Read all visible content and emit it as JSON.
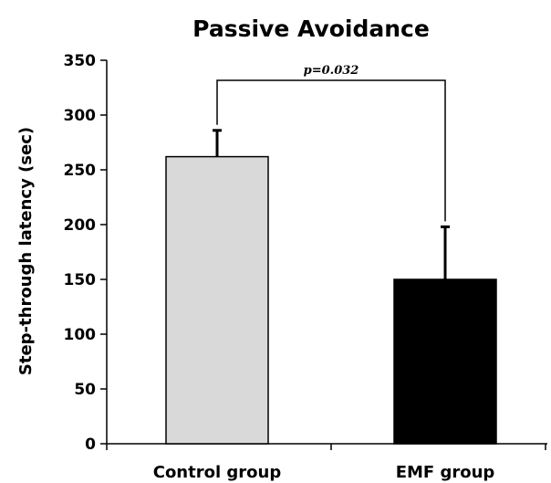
{
  "chart_data": {
    "type": "bar",
    "title": "Passive Avoidance",
    "xlabel": "",
    "ylabel": "Step-through latency (sec)",
    "categories": [
      "Control group",
      "EMF group"
    ],
    "values": [
      262,
      150
    ],
    "error": [
      24,
      48
    ],
    "colors": [
      "#d9d9d9",
      "#000000"
    ],
    "ylim": [
      0,
      350
    ],
    "yticks": [
      "0",
      "50",
      "100",
      "150",
      "200",
      "250",
      "300",
      "350"
    ],
    "ytick_values": [
      0,
      50,
      100,
      150,
      200,
      250,
      300,
      350
    ],
    "grid": false,
    "legend": "none",
    "annotation": {
      "text": "p=0.032",
      "between": [
        "Control group",
        "EMF group"
      ]
    }
  }
}
